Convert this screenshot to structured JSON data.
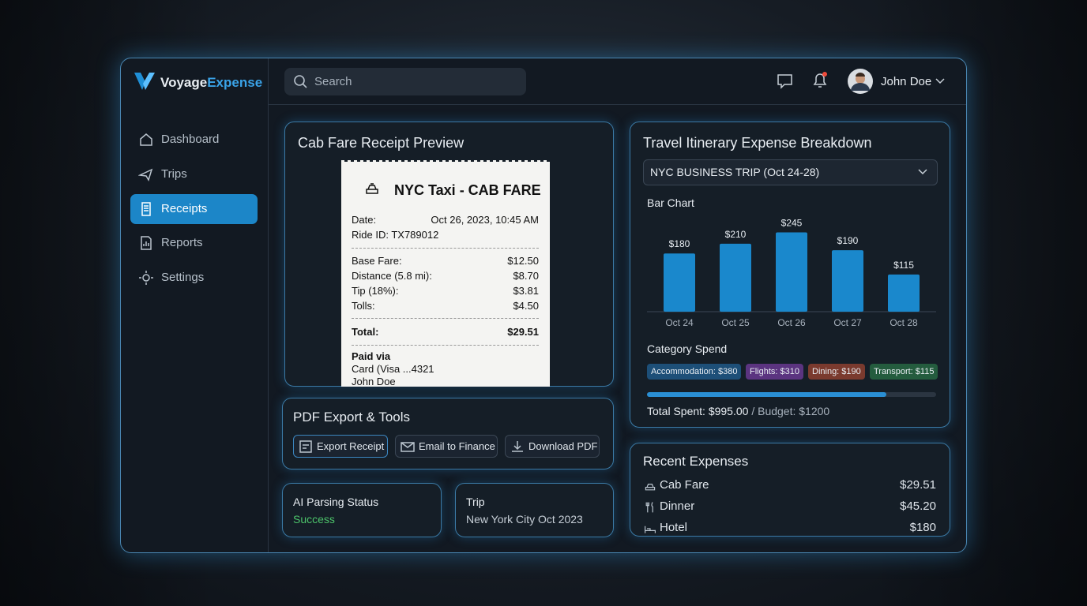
{
  "brand": {
    "name_part1": "Voyage",
    "name_part2": "Expense"
  },
  "nav": [
    {
      "label": "Dashboard"
    },
    {
      "label": "Trips"
    },
    {
      "label": "Receipts",
      "active": true
    },
    {
      "label": "Reports"
    },
    {
      "label": "Settings"
    }
  ],
  "search_placeholder": "Search",
  "user": {
    "name": "John Doe"
  },
  "receipt_preview": {
    "title": "Cab Fare Receipt Preview",
    "receipt": {
      "heading": "NYC Taxi - CAB FARE",
      "date_label": "Date:",
      "date": "Oct 26, 2023, 10:45 AM",
      "ride_id": "Ride ID: TX789012",
      "items": [
        {
          "label": "Base Fare:",
          "amount": "$12.50"
        },
        {
          "label": "Distance (5.8 mi):",
          "amount": "$8.70"
        },
        {
          "label": "Tip (18%):",
          "amount": "$3.81"
        },
        {
          "label": "Tolls:",
          "amount": "$4.50"
        }
      ],
      "total_label": "Total:",
      "total": "$29.51",
      "paid_via": "Paid via",
      "card": "Card (Visa ...4321",
      "payer": "John Doe"
    }
  },
  "pdf_tools": {
    "title": "PDF Export & Tools",
    "buttons": [
      "Export Receipt",
      "Email to Finance",
      "Download PDF"
    ]
  },
  "status_cards": [
    {
      "label": "AI Parsing Status",
      "value": "Success"
    },
    {
      "label": "Trip",
      "value": "New York City Oct 2023"
    }
  ],
  "itinerary": {
    "title": "Travel Itinerary Expense Breakdown",
    "trip_select": "NYC BUSINESS TRIP (Oct 24-28)",
    "category_title": "Category Spend",
    "categories": [
      {
        "label": "Accommodation: $380",
        "color": "#1d4f78"
      },
      {
        "label": "Flights: $310",
        "color": "#5b3480"
      },
      {
        "label": "Dining: $190",
        "color": "#7a3a2e"
      },
      {
        "label": "Transport: $115",
        "color": "#245c3e"
      }
    ],
    "budget": {
      "spent": 995,
      "budget": 1200,
      "spent_text": "Total Spent: $995.00",
      "budget_text": "/ Budget: $1200"
    }
  },
  "chart_data": {
    "type": "bar",
    "title": "Bar Chart",
    "categories": [
      "Oct 24",
      "Oct 25",
      "Oct 26",
      "Oct 27",
      "Oct 28"
    ],
    "values": [
      180,
      210,
      245,
      190,
      115
    ],
    "value_labels": [
      "$180",
      "$210",
      "$245",
      "$190",
      "$115"
    ],
    "color": "#1a88cc"
  },
  "recent": {
    "title": "Recent Expenses",
    "items": [
      {
        "label": "Cab Fare",
        "amount": "$29.51"
      },
      {
        "label": "Dinner",
        "amount": "$45.20"
      },
      {
        "label": "Hotel",
        "amount": "$180"
      }
    ]
  }
}
